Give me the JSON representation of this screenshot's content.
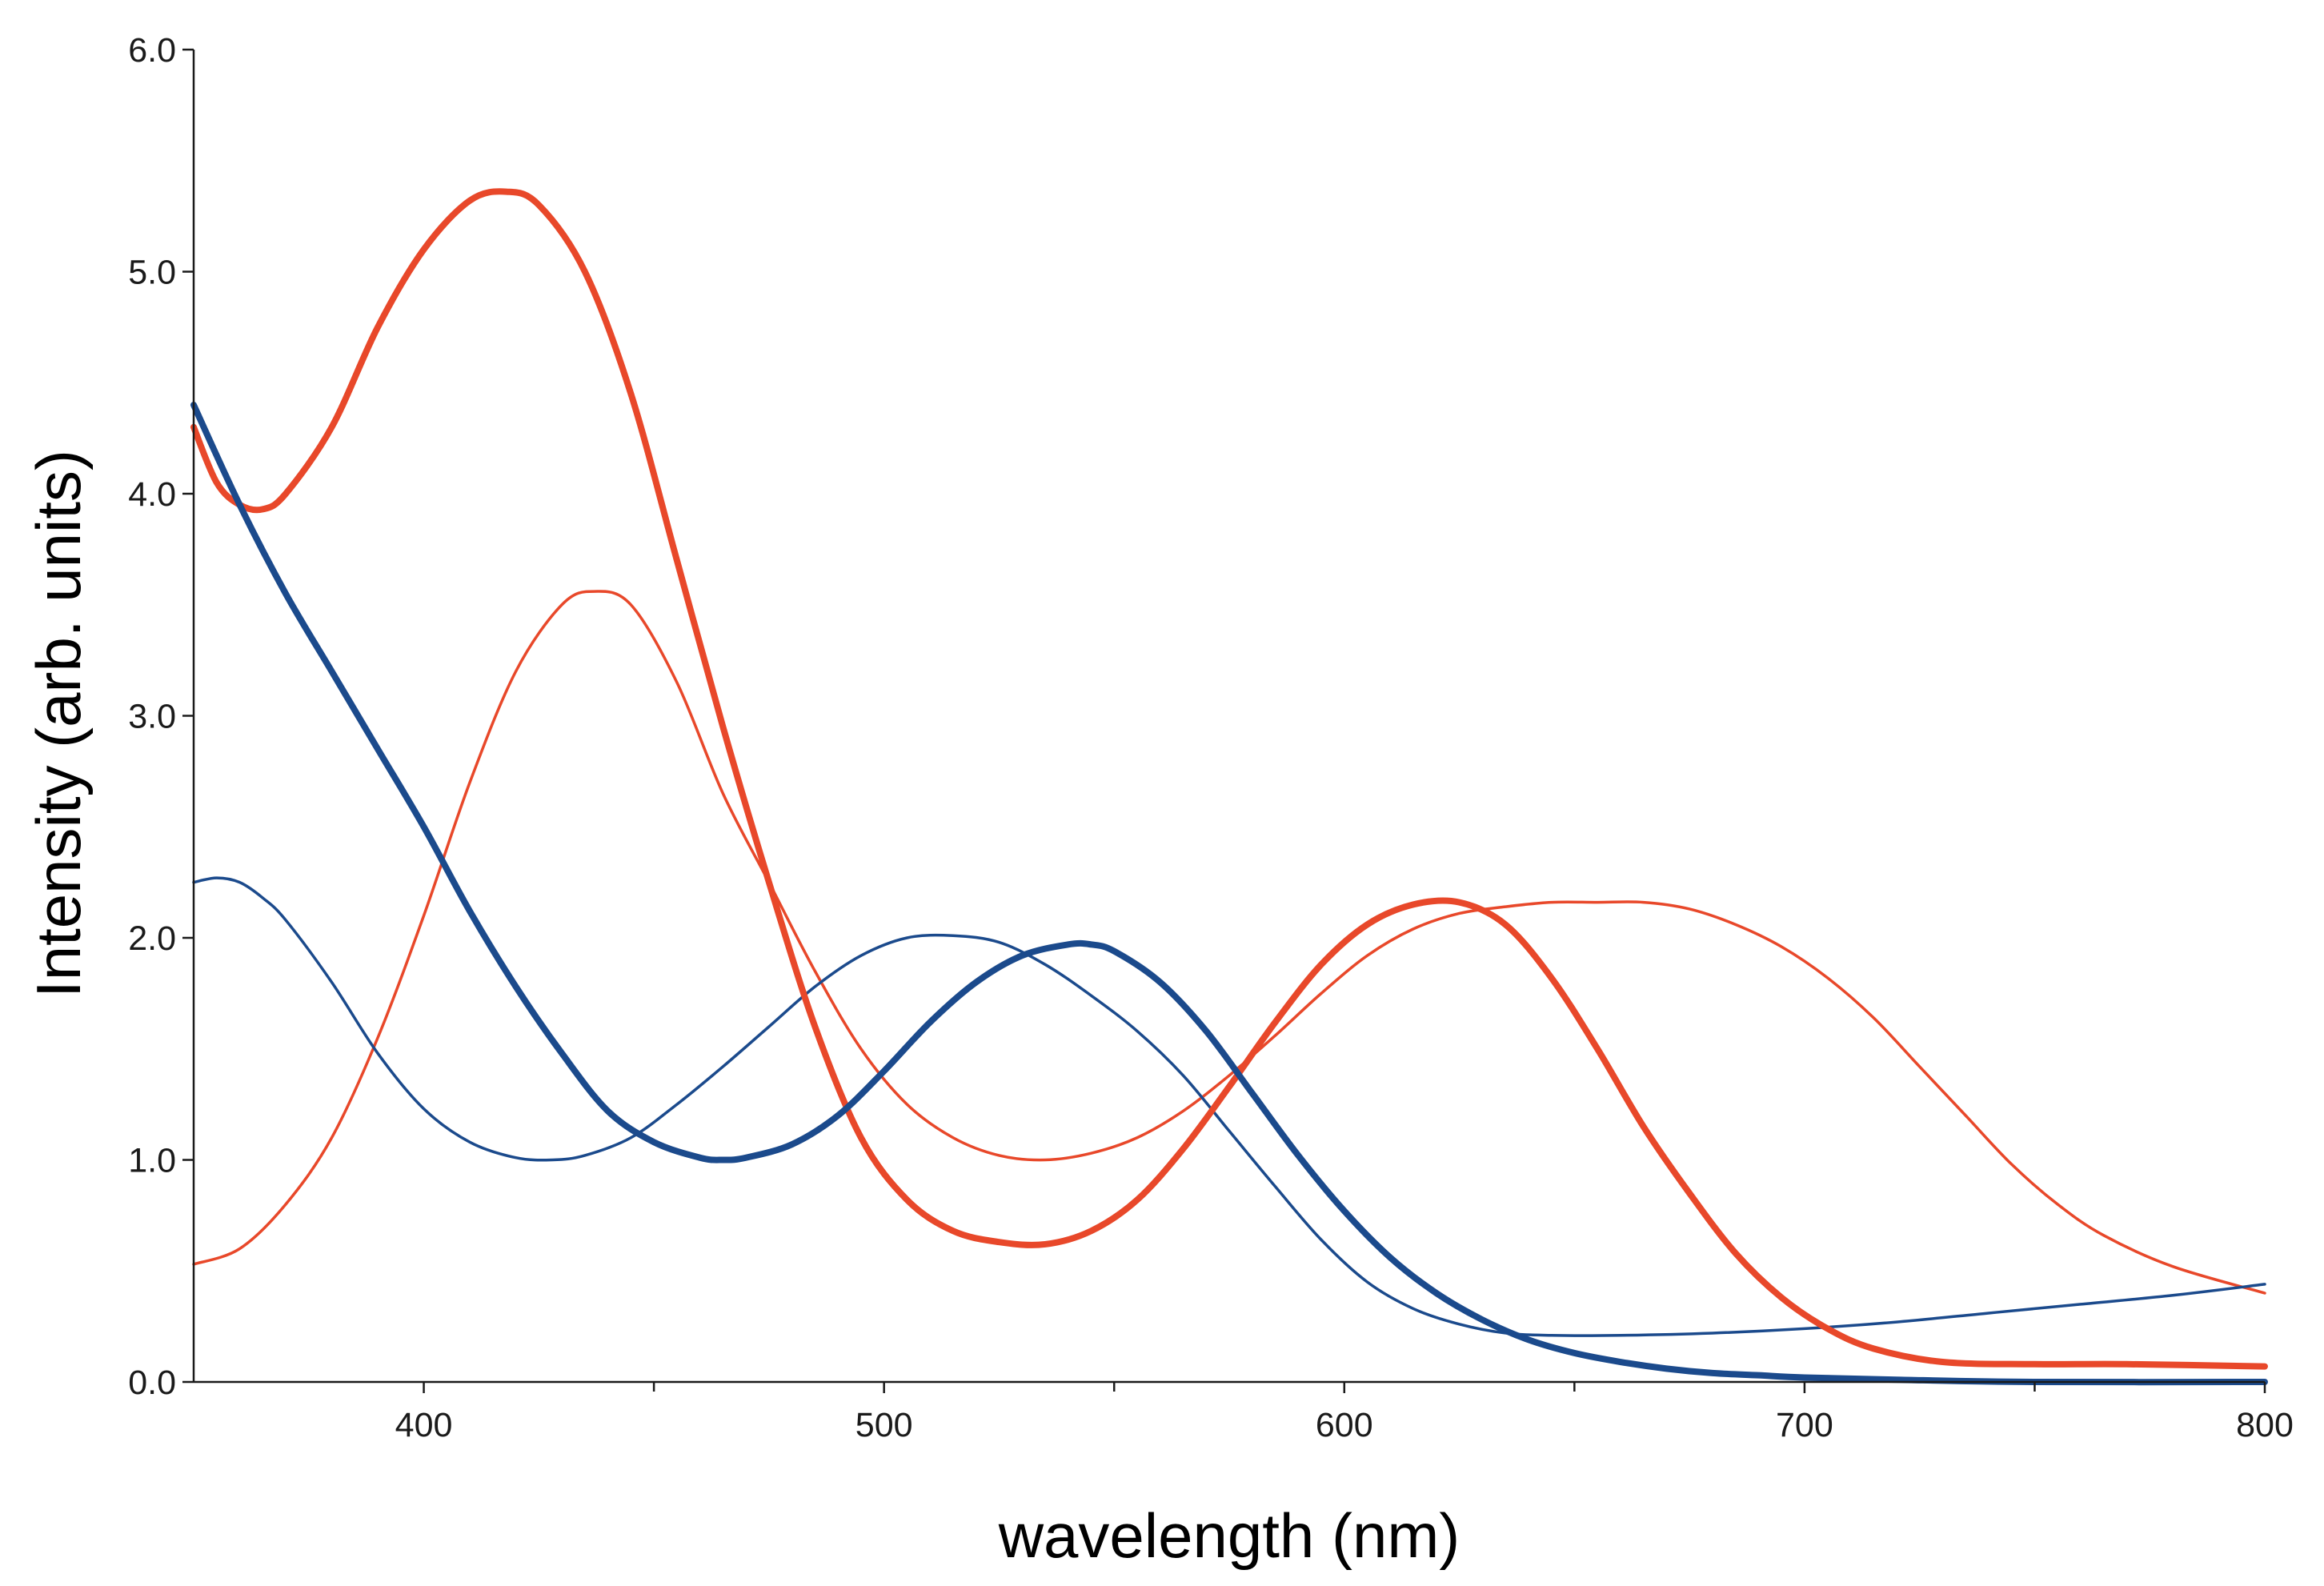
{
  "chart_data": {
    "type": "line",
    "title": "",
    "xlabel": "wavelength (nm)",
    "ylabel": "Intensity (arb. units)",
    "xlim": [
      350,
      800
    ],
    "ylim": [
      0.0,
      6.0
    ],
    "grid": false,
    "legend": "none",
    "x_ticks": [
      400,
      500,
      600,
      700,
      800
    ],
    "x_tick_labels": [
      "400",
      "500",
      "600",
      "700",
      "800"
    ],
    "y_ticks": [
      0.0,
      1.0,
      2.0,
      3.0,
      4.0,
      5.0,
      6.0
    ],
    "y_tick_labels": [
      "0.0",
      "1.0",
      "2.0",
      "3.0",
      "4.0",
      "5.0",
      "6.0"
    ],
    "series": [
      {
        "name": "red-thick",
        "color": "#e8482a",
        "weight": "thick",
        "x": [
          350,
          355,
          360,
          365,
          370,
          380,
          390,
          400,
          410,
          418,
          425,
          435,
          445,
          455,
          465,
          475,
          485,
          495,
          505,
          515,
          525,
          535,
          545,
          555,
          565,
          575,
          585,
          595,
          605,
          615,
          625,
          635,
          645,
          655,
          665,
          675,
          685,
          695,
          705,
          715,
          730,
          750,
          770,
          800
        ],
        "y": [
          4.3,
          4.05,
          3.95,
          3.93,
          4.0,
          4.3,
          4.75,
          5.1,
          5.32,
          5.36,
          5.3,
          5.0,
          4.45,
          3.7,
          2.95,
          2.25,
          1.6,
          1.1,
          0.82,
          0.68,
          0.63,
          0.62,
          0.68,
          0.82,
          1.05,
          1.33,
          1.62,
          1.88,
          2.06,
          2.15,
          2.16,
          2.06,
          1.82,
          1.5,
          1.15,
          0.85,
          0.58,
          0.38,
          0.24,
          0.15,
          0.09,
          0.08,
          0.08,
          0.07
        ]
      },
      {
        "name": "red-thin",
        "color": "#e8482a",
        "weight": "thin",
        "x": [
          350,
          360,
          370,
          380,
          390,
          400,
          410,
          420,
          430,
          437,
          445,
          455,
          465,
          475,
          485,
          495,
          505,
          515,
          525,
          535,
          545,
          555,
          565,
          575,
          585,
          595,
          605,
          615,
          625,
          635,
          645,
          655,
          665,
          675,
          685,
          695,
          705,
          715,
          725,
          735,
          745,
          755,
          765,
          780,
          800
        ],
        "y": [
          0.53,
          0.6,
          0.8,
          1.1,
          1.55,
          2.1,
          2.7,
          3.2,
          3.5,
          3.56,
          3.5,
          3.15,
          2.65,
          2.25,
          1.85,
          1.5,
          1.25,
          1.1,
          1.02,
          1.0,
          1.03,
          1.1,
          1.22,
          1.38,
          1.56,
          1.75,
          1.92,
          2.04,
          2.11,
          2.14,
          2.16,
          2.16,
          2.16,
          2.13,
          2.06,
          1.96,
          1.82,
          1.64,
          1.42,
          1.2,
          0.98,
          0.8,
          0.66,
          0.52,
          0.4
        ]
      },
      {
        "name": "blue-thick",
        "color": "#1b4a8c",
        "weight": "thick",
        "x": [
          350,
          360,
          370,
          380,
          390,
          400,
          410,
          420,
          430,
          440,
          450,
          460,
          465,
          470,
          480,
          490,
          500,
          510,
          520,
          530,
          540,
          545,
          550,
          560,
          570,
          580,
          590,
          600,
          610,
          620,
          630,
          640,
          650,
          660,
          670,
          680,
          690,
          700,
          720,
          750,
          800
        ],
        "y": [
          4.4,
          3.95,
          3.55,
          3.2,
          2.85,
          2.5,
          2.12,
          1.78,
          1.48,
          1.22,
          1.08,
          1.01,
          1.0,
          1.01,
          1.07,
          1.2,
          1.4,
          1.62,
          1.8,
          1.92,
          1.97,
          1.97,
          1.94,
          1.8,
          1.58,
          1.3,
          1.02,
          0.77,
          0.56,
          0.4,
          0.28,
          0.19,
          0.13,
          0.09,
          0.06,
          0.04,
          0.03,
          0.02,
          0.01,
          0.0,
          0.0
        ]
      },
      {
        "name": "blue-thin",
        "color": "#1b4a8c",
        "weight": "thin",
        "x": [
          350,
          355,
          360,
          365,
          370,
          380,
          390,
          400,
          410,
          420,
          428,
          435,
          445,
          455,
          465,
          475,
          485,
          495,
          505,
          515,
          525,
          535,
          545,
          555,
          565,
          575,
          585,
          595,
          605,
          615,
          625,
          635,
          645,
          660,
          680,
          700,
          720,
          740,
          760,
          780,
          800
        ],
        "y": [
          2.25,
          2.27,
          2.25,
          2.18,
          2.08,
          1.8,
          1.48,
          1.23,
          1.08,
          1.01,
          1.0,
          1.02,
          1.1,
          1.25,
          1.42,
          1.6,
          1.78,
          1.92,
          2.0,
          2.01,
          1.98,
          1.88,
          1.74,
          1.58,
          1.38,
          1.13,
          0.88,
          0.64,
          0.45,
          0.33,
          0.26,
          0.22,
          0.21,
          0.21,
          0.22,
          0.24,
          0.27,
          0.31,
          0.35,
          0.39,
          0.44
        ]
      }
    ]
  }
}
